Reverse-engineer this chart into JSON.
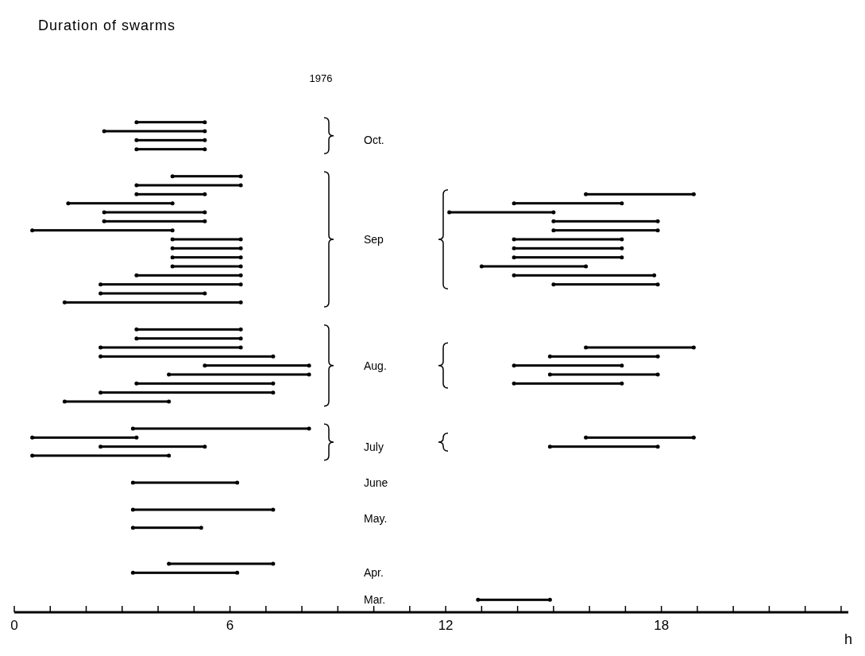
{
  "chart_data": {
    "type": "bar",
    "orientation": "horizontal",
    "title": "Duration of swarms",
    "subtitle": "1976",
    "xlabel": "h",
    "marker": "circle",
    "categories": [
      null,
      null,
      "Oct.",
      null,
      null,
      null,
      null,
      null,
      null,
      null,
      null,
      null,
      null,
      "Sep",
      null,
      null,
      null,
      null,
      null,
      null,
      null,
      null,
      null,
      null,
      null,
      null,
      null,
      "Aug.",
      null,
      null,
      null,
      null,
      null,
      null,
      null,
      null,
      "July",
      null,
      null,
      null,
      "June",
      null,
      null,
      null,
      "May.",
      null,
      null,
      null,
      null,
      null,
      "Apr.",
      null,
      null,
      "Mar."
    ],
    "xlim": [
      0,
      23.2
    ],
    "xticks": [
      0,
      {
        "value": 1,
        "label": null
      },
      {
        "value": 2,
        "label": null
      },
      {
        "value": 3,
        "label": null
      },
      {
        "value": 4,
        "label": null
      },
      {
        "value": 5,
        "label": null
      },
      6,
      {
        "value": 7,
        "label": null
      },
      {
        "value": 8,
        "label": null
      },
      {
        "value": 9,
        "label": null
      },
      {
        "value": 10,
        "label": null
      },
      {
        "value": 11,
        "label": null
      },
      12,
      {
        "value": 13,
        "label": null
      },
      {
        "value": 14,
        "label": null
      },
      {
        "value": 15,
        "label": null
      },
      {
        "value": 16,
        "label": null
      },
      {
        "value": 17,
        "label": null
      },
      18,
      {
        "value": 19,
        "label": null
      },
      {
        "value": 20,
        "label": null
      },
      {
        "value": 21,
        "label": null
      },
      {
        "value": 22,
        "label": null
      },
      {
        "value": 23,
        "label": null
      }
    ],
    "series": [
      {
        "color": "#000000",
        "base": [
          3.4,
          2.5,
          3.4,
          3.4,
          null,
          null,
          4.4,
          3.4,
          3.4,
          1.5,
          2.5,
          2.5,
          0.5,
          4.4,
          4.4,
          4.4,
          4.4,
          3.4,
          2.4,
          2.4,
          1.4,
          null,
          null,
          3.4,
          3.4,
          2.4,
          2.4,
          5.3,
          4.3,
          3.4,
          2.4,
          1.4,
          null,
          null,
          3.3,
          0.5,
          2.4,
          0.5,
          null,
          null,
          3.3,
          null,
          null,
          3.3,
          null,
          3.3,
          null,
          null,
          null,
          4.3,
          3.3,
          null,
          null,
          null
        ],
        "values": [
          1.9,
          2.8,
          1.9,
          1.9,
          null,
          null,
          1.9,
          2.9,
          1.9,
          2.9,
          2.8,
          2.8,
          3.9,
          1.9,
          1.9,
          1.9,
          1.9,
          2.9,
          3.9,
          2.9,
          4.9,
          null,
          null,
          2.9,
          2.9,
          3.9,
          4.8,
          2.9,
          3.9,
          3.8,
          4.8,
          2.9,
          null,
          null,
          4.9,
          2.9,
          2.9,
          3.8,
          null,
          null,
          2.9,
          null,
          null,
          3.9,
          null,
          1.9,
          null,
          null,
          null,
          2.9,
          2.9,
          null,
          null,
          null
        ]
      },
      {
        "color": "#000000",
        "base": [
          null,
          null,
          null,
          null,
          null,
          null,
          null,
          null,
          15.9,
          13.9,
          12.1,
          15.0,
          15.0,
          13.9,
          13.9,
          13.9,
          13.0,
          13.9,
          15.0,
          null,
          null,
          null,
          null,
          null,
          null,
          15.9,
          14.9,
          13.9,
          14.9,
          13.9,
          null,
          null,
          null,
          null,
          null,
          15.9,
          14.9,
          null,
          null,
          null,
          null,
          null,
          null,
          null,
          null,
          null,
          null,
          null,
          null,
          null,
          null,
          null,
          null,
          12.9
        ],
        "values": [
          null,
          null,
          null,
          null,
          null,
          null,
          null,
          null,
          3.0,
          3.0,
          2.9,
          2.9,
          2.9,
          3.0,
          3.0,
          3.0,
          2.9,
          3.9,
          2.9,
          null,
          null,
          null,
          null,
          null,
          null,
          3.0,
          3.0,
          3.0,
          3.0,
          3.0,
          null,
          null,
          null,
          null,
          null,
          3.0,
          3.0,
          null,
          null,
          null,
          null,
          null,
          null,
          null,
          null,
          null,
          null,
          null,
          null,
          null,
          null,
          null,
          null,
          2.0
        ]
      }
    ]
  }
}
